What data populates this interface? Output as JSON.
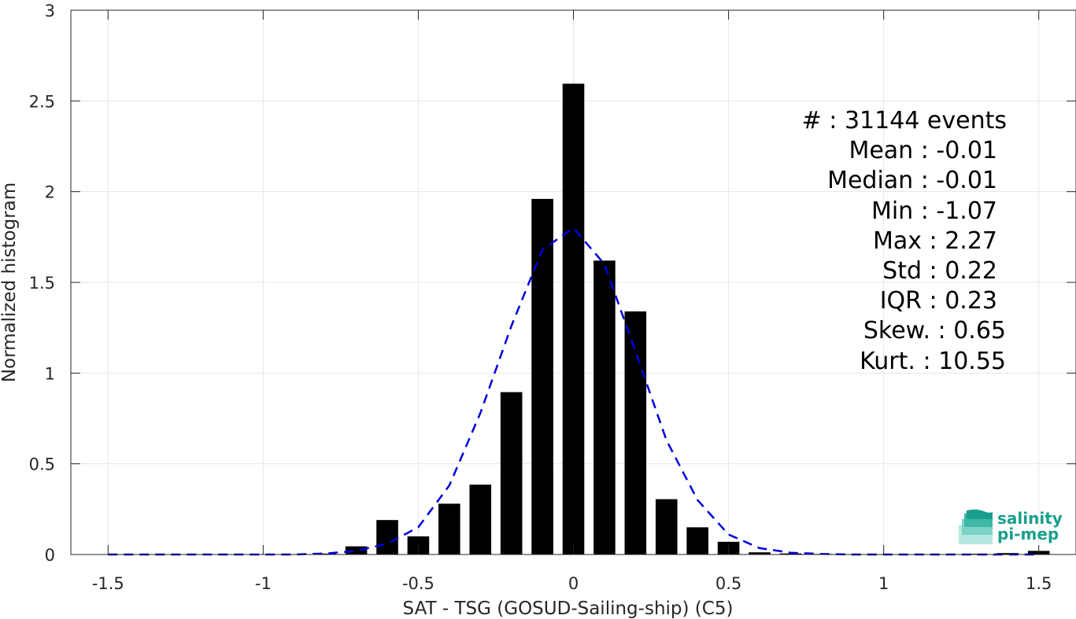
{
  "chart_data": {
    "type": "bar",
    "xlabel": "SAT - TSG (GOSUD-Sailing-ship) (C5)",
    "ylabel": "Normalized histogram",
    "xlim": [
      -1.62,
      1.62
    ],
    "ylim": [
      0,
      3
    ],
    "xticks": [
      -1.5,
      -1,
      -0.5,
      0,
      0.5,
      1,
      1.5
    ],
    "xtick_labels": [
      "-1.5",
      "-1",
      "-0.5",
      "0",
      "0.5",
      "1",
      "1.5"
    ],
    "yticks": [
      0,
      0.5,
      1,
      1.5,
      2,
      2.5,
      3
    ],
    "ytick_labels": [
      "0",
      "0.5",
      "1",
      "1.5",
      "2",
      "2.5",
      "3"
    ],
    "grid": true,
    "bar_width": 0.07,
    "bar_color": "#000000",
    "histogram": {
      "x": [
        -0.9,
        -0.8,
        -0.7,
        -0.6,
        -0.5,
        -0.4,
        -0.3,
        -0.2,
        -0.1,
        0.0,
        0.1,
        0.2,
        0.3,
        0.4,
        0.5,
        0.6,
        0.7,
        0.8,
        1.3,
        1.4,
        1.5
      ],
      "values": [
        0.002,
        0.005,
        0.045,
        0.19,
        0.1,
        0.28,
        0.385,
        0.895,
        1.96,
        2.595,
        1.62,
        1.34,
        0.305,
        0.15,
        0.07,
        0.012,
        0.006,
        0.003,
        0.004,
        0.008,
        0.02
      ]
    },
    "fit": {
      "style": "dashed",
      "color": "#0000dd",
      "x": [
        -1.5,
        -1.4,
        -1.3,
        -1.2,
        -1.1,
        -1.0,
        -0.9,
        -0.8,
        -0.7,
        -0.6,
        -0.5,
        -0.4,
        -0.3,
        -0.2,
        -0.1,
        0.0,
        0.1,
        0.2,
        0.3,
        0.4,
        0.5,
        0.6,
        0.7,
        0.8,
        0.9,
        1.0,
        1.1,
        1.2,
        1.3,
        1.4,
        1.5
      ],
      "y": [
        0.0,
        0.0,
        0.0,
        0.0,
        0.0,
        0.0,
        0.0,
        0.005,
        0.02,
        0.06,
        0.15,
        0.38,
        0.78,
        1.26,
        1.68,
        1.8,
        1.6,
        1.12,
        0.63,
        0.3,
        0.11,
        0.035,
        0.01,
        0.003,
        0.0,
        0.0,
        0.0,
        0.0,
        0.0,
        0.0,
        0.0
      ]
    }
  },
  "stats": [
    {
      "label": "#  ",
      "value": ": 31144 events"
    },
    {
      "label": "Mean ",
      "value": ": -0.01"
    },
    {
      "label": "Median ",
      "value": ": -0.01"
    },
    {
      "label": "Min ",
      "value": ": -1.07"
    },
    {
      "label": "Max ",
      "value": ": 2.27"
    },
    {
      "label": "Std ",
      "value": ": 0.22"
    },
    {
      "label": "IQR ",
      "value": ": 0.23"
    },
    {
      "label": "Skew. ",
      "value": ": 0.65"
    },
    {
      "label": "Kurt. ",
      "value": ": 10.55"
    }
  ],
  "logo": {
    "line1": "salinity",
    "line2": "pi-mep",
    "colors": [
      "#1a9e8c",
      "#3fb8a8",
      "#7ad3c6",
      "#b6e8df"
    ]
  }
}
